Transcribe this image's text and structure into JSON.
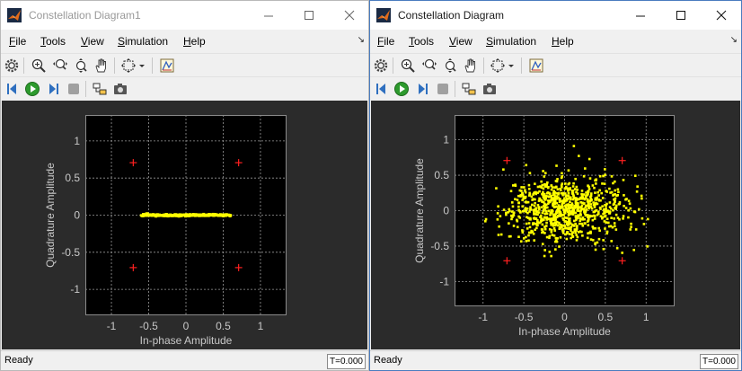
{
  "windows": [
    {
      "title": "Constellation Diagram1",
      "menu": [
        "File",
        "Tools",
        "View",
        "Simulation",
        "Help"
      ],
      "status": "Ready",
      "time": "T=0.000",
      "chart_data": {
        "type": "scatter",
        "xlabel": "In-phase Amplitude",
        "ylabel": "Quadrature Amplitude",
        "xlim": [
          -1.35,
          1.35
        ],
        "ylim": [
          -1.35,
          1.35
        ],
        "xticks": [
          "-1",
          "-0.5",
          "0",
          "0.5",
          "1"
        ],
        "yticks": [
          "1",
          "0.5",
          "0",
          "-0.5",
          "-1"
        ],
        "grid": true,
        "colors": {
          "received": "#ffff00",
          "reference": "#ff2020",
          "background": "#000000"
        },
        "reference_points": [
          [
            -0.707,
            0.707
          ],
          [
            0.707,
            0.707
          ],
          [
            -0.707,
            -0.707
          ],
          [
            0.707,
            -0.707
          ]
        ],
        "received_points": "horizontal line of received symbols along the in-phase axis from about -0.6 to 0.6 at quadrature 0"
      }
    },
    {
      "title": "Constellation Diagram",
      "menu": [
        "File",
        "Tools",
        "View",
        "Simulation",
        "Help"
      ],
      "status": "Ready",
      "time": "T=0.000",
      "chart_data": {
        "type": "scatter",
        "xlabel": "In-phase Amplitude",
        "ylabel": "Quadrature Amplitude",
        "xlim": [
          -1.35,
          1.35
        ],
        "ylim": [
          -1.35,
          1.35
        ],
        "xticks": [
          "-1",
          "-0.5",
          "0",
          "0.5",
          "1"
        ],
        "yticks": [
          "1",
          "0.5",
          "0",
          "-0.5",
          "-1"
        ],
        "grid": true,
        "colors": {
          "received": "#ffff00",
          "reference": "#ff2020",
          "background": "#000000"
        },
        "reference_points": [
          [
            -0.707,
            0.707
          ],
          [
            0.707,
            0.707
          ],
          [
            -0.707,
            -0.707
          ],
          [
            0.707,
            -0.707
          ]
        ],
        "received_points": "dense noisy cloud of received symbols centered at origin, in-phase spread about -1.3 to 1.2, quadrature spread about -0.8 to 1.0"
      }
    }
  ]
}
